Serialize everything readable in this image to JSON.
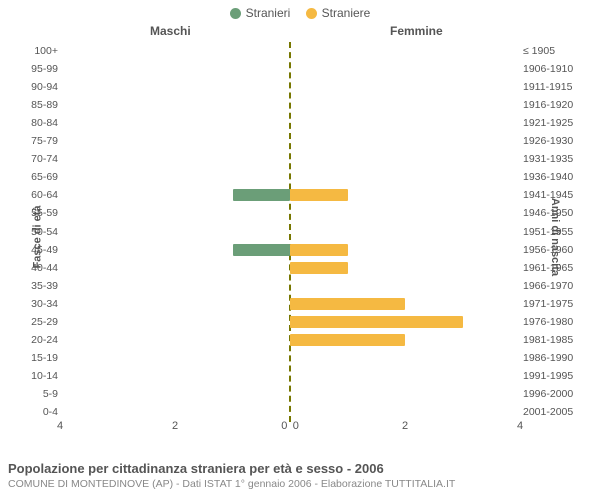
{
  "chart": {
    "type": "diverging-bar",
    "legend": [
      {
        "label": "Stranieri",
        "color": "#6b9e78"
      },
      {
        "label": "Straniere",
        "color": "#f5b942"
      }
    ],
    "column_headers": {
      "left": "Maschi",
      "right": "Femmine"
    },
    "axis_labels": {
      "left": "Fasce di età",
      "right": "Anni di nascita"
    },
    "colors": {
      "male": "#6b9e78",
      "female": "#f5b942",
      "background": "#ffffff",
      "text": "#555555",
      "subtext": "#888888",
      "zero_line": "#777700"
    },
    "x_axis": {
      "min": -4,
      "max": 4,
      "ticks": [
        4,
        2,
        0,
        0,
        2,
        4
      ]
    },
    "rows": [
      {
        "age": "100+",
        "birth": "≤ 1905",
        "m": 0,
        "f": 0
      },
      {
        "age": "95-99",
        "birth": "1906-1910",
        "m": 0,
        "f": 0
      },
      {
        "age": "90-94",
        "birth": "1911-1915",
        "m": 0,
        "f": 0
      },
      {
        "age": "85-89",
        "birth": "1916-1920",
        "m": 0,
        "f": 0
      },
      {
        "age": "80-84",
        "birth": "1921-1925",
        "m": 0,
        "f": 0
      },
      {
        "age": "75-79",
        "birth": "1926-1930",
        "m": 0,
        "f": 0
      },
      {
        "age": "70-74",
        "birth": "1931-1935",
        "m": 0,
        "f": 0
      },
      {
        "age": "65-69",
        "birth": "1936-1940",
        "m": 0,
        "f": 0
      },
      {
        "age": "60-64",
        "birth": "1941-1945",
        "m": 1,
        "f": 1
      },
      {
        "age": "55-59",
        "birth": "1946-1950",
        "m": 0,
        "f": 0
      },
      {
        "age": "50-54",
        "birth": "1951-1955",
        "m": 0,
        "f": 0
      },
      {
        "age": "45-49",
        "birth": "1956-1960",
        "m": 1,
        "f": 1
      },
      {
        "age": "40-44",
        "birth": "1961-1965",
        "m": 0,
        "f": 1
      },
      {
        "age": "35-39",
        "birth": "1966-1970",
        "m": 0,
        "f": 0
      },
      {
        "age": "30-34",
        "birth": "1971-1975",
        "m": 0,
        "f": 2
      },
      {
        "age": "25-29",
        "birth": "1976-1980",
        "m": 0,
        "f": 3
      },
      {
        "age": "20-24",
        "birth": "1981-1985",
        "m": 0,
        "f": 2
      },
      {
        "age": "15-19",
        "birth": "1986-1990",
        "m": 0,
        "f": 0
      },
      {
        "age": "10-14",
        "birth": "1991-1995",
        "m": 0,
        "f": 0
      },
      {
        "age": "5-9",
        "birth": "1996-2000",
        "m": 0,
        "f": 0
      },
      {
        "age": "0-4",
        "birth": "2001-2005",
        "m": 0,
        "f": 0
      }
    ],
    "fontsize_ticks": 10.5,
    "fontsize_headers": 12,
    "title_fontsize": 13
  },
  "footer": {
    "title": "Popolazione per cittadinanza straniera per età e sesso - 2006",
    "subtitle": "COMUNE DI MONTEDINOVE (AP) - Dati ISTAT 1° gennaio 2006 - Elaborazione TUTTITALIA.IT"
  }
}
